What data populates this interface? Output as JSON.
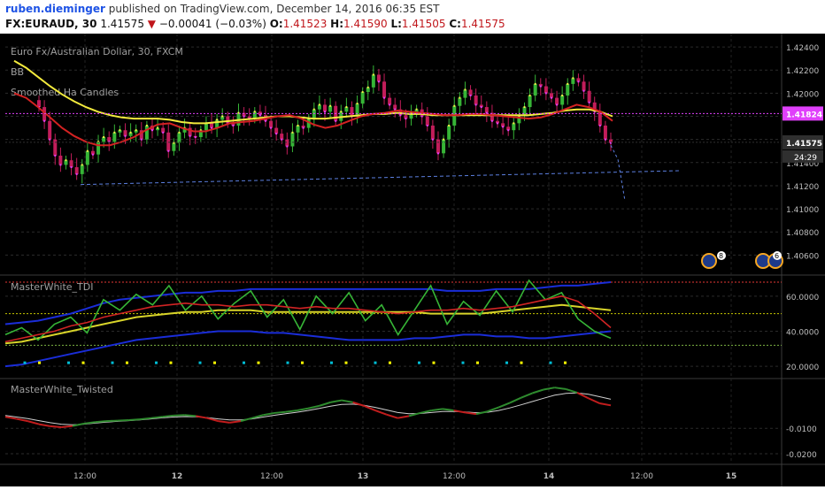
{
  "header": {
    "author": "ruben.dieminger",
    "published": "published on TradingView.com, December 14, 2016 06:35 EST",
    "symbol": "FX:EURAUD, 30",
    "last": "1.41575",
    "arrow": "▼",
    "change": "−0.00041 (−0.03%)",
    "o_label": "O:",
    "o_val": "1.41523",
    "h_label": "H:",
    "h_val": "1.41590",
    "l_label": "L:",
    "l_val": "1.41505",
    "c_label": "C:",
    "c_val": "1.41575"
  },
  "chart_data": [
    {
      "type": "candlestick",
      "title": "Euro Fx/Australian Dollar, 30, FXCM",
      "studies": [
        "BB",
        "Smoothed Ha Candles"
      ],
      "yticks": [
        "1.42400",
        "1.42200",
        "1.42000",
        "1.41800",
        "1.41600",
        "1.41400",
        "1.41200",
        "1.41000",
        "1.40800",
        "1.40600"
      ],
      "ylim": [
        1.4045,
        1.425
      ],
      "price_markers": [
        {
          "label": "1.41824",
          "value": 1.41824,
          "color": "#e040fb"
        },
        {
          "label": "1.41575",
          "value": 1.41575,
          "color": "#2f2f2f"
        }
      ],
      "countdown": "24:29",
      "trendline": {
        "from": [
          0.04,
          1.4121
        ],
        "to": [
          0.87,
          1.4133
        ]
      },
      "candles_close": [
        1.4188,
        1.4176,
        1.416,
        1.4146,
        1.4138,
        1.4142,
        1.4136,
        1.413,
        1.4138,
        1.415,
        1.4147,
        1.4158,
        1.4162,
        1.4158,
        1.4166,
        1.4168,
        1.4163,
        1.4166,
        1.4168,
        1.416,
        1.4172,
        1.4168,
        1.417,
        1.4166,
        1.415,
        1.4157,
        1.4166,
        1.417,
        1.4163,
        1.4162,
        1.4168,
        1.4174,
        1.417,
        1.4177,
        1.418,
        1.4174,
        1.4172,
        1.4183,
        1.418,
        1.4178,
        1.4184,
        1.4181,
        1.4176,
        1.417,
        1.4165,
        1.416,
        1.4154,
        1.4166,
        1.4172,
        1.417,
        1.4178,
        1.4186,
        1.419,
        1.4184,
        1.4189,
        1.4176,
        1.4184,
        1.4188,
        1.418,
        1.4191,
        1.4201,
        1.4205,
        1.4216,
        1.421,
        1.4196,
        1.419,
        1.4186,
        1.4181,
        1.4178,
        1.4183,
        1.4186,
        1.418,
        1.4172,
        1.416,
        1.4148,
        1.416,
        1.4172,
        1.4189,
        1.4196,
        1.4203,
        1.4198,
        1.419,
        1.4188,
        1.4183,
        1.4176,
        1.4174,
        1.4171,
        1.4168,
        1.4174,
        1.418,
        1.4188,
        1.4198,
        1.4208,
        1.4206,
        1.42,
        1.4196,
        1.419,
        1.4198,
        1.4208,
        1.4213,
        1.421,
        1.4202,
        1.4192,
        1.4184,
        1.4172,
        1.416,
        1.4157
      ],
      "ma_red": [
        1.42,
        1.4196,
        1.4188,
        1.4179,
        1.417,
        1.4163,
        1.4158,
        1.4155,
        1.4155,
        1.4158,
        1.4162,
        1.4168,
        1.4173,
        1.4174,
        1.417,
        1.4167,
        1.4167,
        1.417,
        1.4174,
        1.4175,
        1.4176,
        1.4178,
        1.418,
        1.4181,
        1.4178,
        1.4173,
        1.417,
        1.4172,
        1.4176,
        1.418,
        1.4182,
        1.4183,
        1.4185,
        1.4184,
        1.4183,
        1.4182,
        1.4181,
        1.4181,
        1.4182,
        1.4182,
        1.4181,
        1.418,
        1.4179,
        1.4178,
        1.4179,
        1.4182,
        1.4186,
        1.419,
        1.4188,
        1.4184,
        1.4176
      ],
      "ma_yellow": [
        1.4228,
        1.4222,
        1.4214,
        1.4206,
        1.4199,
        1.4193,
        1.4188,
        1.4184,
        1.4181,
        1.4179,
        1.4178,
        1.4178,
        1.4178,
        1.4177,
        1.4175,
        1.4174,
        1.4174,
        1.4175,
        1.4176,
        1.4177,
        1.4178,
        1.4179,
        1.418,
        1.418,
        1.4179,
        1.4178,
        1.4178,
        1.4179,
        1.418,
        1.4181,
        1.4182,
        1.4182,
        1.4183,
        1.4182,
        1.4182,
        1.4181,
        1.4181,
        1.4181,
        1.4181,
        1.4181,
        1.4181,
        1.4181,
        1.4181,
        1.4181,
        1.4182,
        1.4183,
        1.4185,
        1.4186,
        1.4186,
        1.4184,
        1.418
      ],
      "event_badges": [
        "8",
        "6"
      ]
    },
    {
      "type": "line",
      "title": "MasterWhite_TDI",
      "yticks": [
        "60.0000",
        "40.0000",
        "20.0000"
      ],
      "ylim": [
        14,
        70
      ],
      "levels": [
        {
          "value": 68,
          "color": "#e53935"
        },
        {
          "value": 50,
          "color": "#c8c800"
        },
        {
          "value": 32,
          "color": "#7cb342"
        }
      ],
      "series": [
        {
          "name": "upper",
          "color": "#1a2dd8",
          "values": [
            44,
            45,
            46,
            48,
            50,
            53,
            56,
            58,
            59,
            60,
            61,
            62,
            62,
            63,
            63,
            64,
            64,
            64,
            64,
            64,
            64,
            64,
            64,
            64,
            64,
            64,
            64,
            63,
            63,
            63,
            64,
            64,
            64,
            65,
            66,
            66,
            67,
            68
          ]
        },
        {
          "name": "middle",
          "color": "#d8d42a",
          "values": [
            33,
            34,
            36,
            38,
            40,
            42,
            44,
            46,
            48,
            49,
            50,
            51,
            51,
            52,
            52,
            52,
            51,
            51,
            51,
            51,
            51,
            51,
            51,
            51,
            51,
            51,
            50,
            50,
            50,
            50,
            51,
            52,
            53,
            54,
            55,
            54,
            53,
            52
          ]
        },
        {
          "name": "lower",
          "color": "#1a2dd8",
          "values": [
            20,
            21,
            23,
            25,
            27,
            29,
            31,
            33,
            35,
            36,
            37,
            38,
            39,
            40,
            40,
            40,
            39,
            39,
            38,
            37,
            36,
            35,
            35,
            35,
            35,
            36,
            36,
            37,
            38,
            38,
            37,
            37,
            36,
            36,
            37,
            38,
            39,
            40
          ]
        },
        {
          "name": "rsi",
          "color": "#36b536",
          "values": [
            38,
            42,
            35,
            44,
            48,
            39,
            58,
            52,
            61,
            55,
            66,
            52,
            60,
            47,
            56,
            63,
            48,
            58,
            41,
            60,
            50,
            62,
            46,
            55,
            38,
            52,
            66,
            44,
            57,
            49,
            63,
            51,
            69,
            58,
            62,
            47,
            40,
            36
          ]
        },
        {
          "name": "signal",
          "color": "#d12424",
          "values": [
            34,
            36,
            38,
            40,
            43,
            45,
            48,
            50,
            52,
            54,
            55,
            56,
            55,
            55,
            54,
            55,
            55,
            54,
            53,
            54,
            53,
            53,
            52,
            51,
            50,
            51,
            52,
            52,
            53,
            52,
            53,
            54,
            56,
            58,
            60,
            57,
            50,
            42
          ]
        }
      ],
      "dot_colors": [
        "#e040fb",
        "#ffff00",
        "#00bcd4"
      ]
    },
    {
      "type": "line",
      "title": "MasterWhite_Twisted",
      "yticks": [
        "-0.0100",
        "-0.0200"
      ],
      "ylim": [
        -0.0235,
        0.0085
      ],
      "series": [
        {
          "name": "fast",
          "values": [
            -0.0055,
            -0.0063,
            -0.0072,
            -0.0084,
            -0.0092,
            -0.0096,
            -0.0091,
            -0.0082,
            -0.0076,
            -0.0072,
            -0.007,
            -0.0068,
            -0.0065,
            -0.006,
            -0.0055,
            -0.005,
            -0.0048,
            -0.0052,
            -0.006,
            -0.0072,
            -0.0078,
            -0.0072,
            -0.006,
            -0.0048,
            -0.004,
            -0.0036,
            -0.003,
            -0.0022,
            -0.0012,
            0.0002,
            0.001,
            0.0002,
            -0.0012,
            -0.003,
            -0.0046,
            -0.006,
            -0.0052,
            -0.004,
            -0.003,
            -0.0024,
            -0.003,
            -0.0038,
            -0.0044,
            -0.0034,
            -0.0018,
            0.0,
            0.002,
            0.0038,
            0.0052,
            0.006,
            0.0054,
            0.004,
            0.0018,
            -0.0002,
            -0.001
          ]
        },
        {
          "name": "slow",
          "color": "#d0d0d0",
          "values": [
            -0.005,
            -0.0056,
            -0.0062,
            -0.007,
            -0.0078,
            -0.0084,
            -0.0086,
            -0.0084,
            -0.008,
            -0.0076,
            -0.0073,
            -0.007,
            -0.0067,
            -0.0063,
            -0.0059,
            -0.0056,
            -0.0054,
            -0.0055,
            -0.0058,
            -0.0063,
            -0.0067,
            -0.0067,
            -0.0063,
            -0.0056,
            -0.0049,
            -0.0043,
            -0.0037,
            -0.003,
            -0.0022,
            -0.0013,
            -0.0006,
            -0.0005,
            -0.001,
            -0.0018,
            -0.0028,
            -0.0038,
            -0.0043,
            -0.0042,
            -0.0038,
            -0.0034,
            -0.0034,
            -0.0036,
            -0.0039,
            -0.0037,
            -0.003,
            -0.002,
            -0.0008,
            0.0005,
            0.0018,
            0.003,
            0.0037,
            0.0039,
            0.0034,
            0.0024,
            0.0014
          ]
        }
      ]
    }
  ],
  "xaxis": {
    "ticks": [
      "12:00",
      "12",
      "12:00",
      "13",
      "12:00",
      "14",
      "12:00",
      "15"
    ]
  },
  "colors": {
    "up": "#36b536",
    "down": "#c21d5a",
    "up_ha": "#f7ef4a",
    "down_ha": "#e040fb"
  }
}
